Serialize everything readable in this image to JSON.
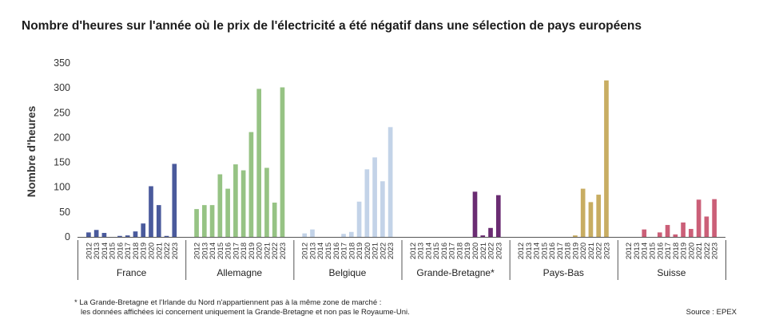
{
  "title": "Nombre d'heures sur l'année où le prix de l'électricité a été négatif dans une sélection de pays européens",
  "footnote": {
    "line1": "* La Grande-Bretagne et l'Irlande du Nord n'appartiennent pas à la même zone de marché :",
    "line2": "les données affichées ici concernent uniquement la Grande-Bretagne et non pas le Royaume-Uni."
  },
  "source": "Source : EPEX",
  "chart_data": {
    "type": "bar",
    "title": "Nombre d'heures sur l'année où le prix de l'électricité a été négatif dans une sélection de pays européens",
    "ylabel": "Nombre d'heures",
    "xlabel": "",
    "ylim": [
      0,
      350
    ],
    "yticks": [
      0,
      50,
      100,
      150,
      200,
      250,
      300,
      350
    ],
    "grid": false,
    "years": [
      "2012",
      "2013",
      "2014",
      "2015",
      "2016",
      "2017",
      "2018",
      "2019",
      "2020",
      "2021",
      "2022",
      "2023"
    ],
    "groups": [
      {
        "name": "France",
        "color": "#4a5a9c",
        "values": [
          9,
          14,
          8,
          0,
          2,
          3,
          11,
          27,
          102,
          64,
          2,
          147
        ]
      },
      {
        "name": "Allemagne",
        "color": "#96c384",
        "values": [
          56,
          64,
          64,
          126,
          97,
          146,
          134,
          211,
          298,
          139,
          69,
          301
        ]
      },
      {
        "name": "Belgique",
        "color": "#c3d3e8",
        "values": [
          7,
          15,
          0,
          0,
          0,
          6,
          10,
          71,
          136,
          160,
          112,
          221
        ]
      },
      {
        "name": "Grande-Bretagne*",
        "color": "#6a2c72",
        "values": [
          0,
          0,
          0,
          0,
          0,
          0,
          0,
          0,
          91,
          3,
          18,
          84
        ]
      },
      {
        "name": "Pays-Bas",
        "color": "#c8ad62",
        "values": [
          0,
          0,
          0,
          0,
          0,
          0,
          0,
          3,
          97,
          70,
          85,
          315
        ]
      },
      {
        "name": "Suisse",
        "color": "#cb5f78",
        "values": [
          0,
          0,
          15,
          0,
          9,
          24,
          5,
          29,
          16,
          75,
          41,
          76
        ]
      }
    ]
  }
}
